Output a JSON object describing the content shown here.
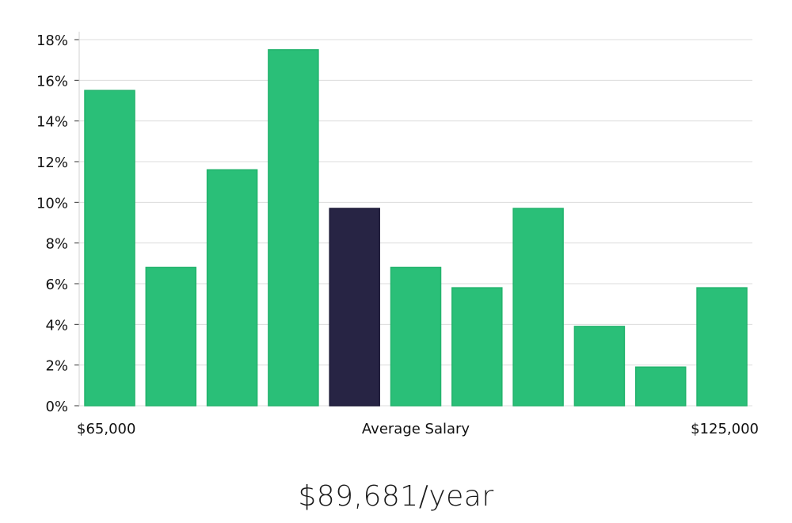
{
  "chart_data": {
    "type": "bar",
    "categories": [
      "$65,000",
      "",
      "",
      "",
      "Average Salary",
      "",
      "",
      "",
      "",
      "",
      "$125,000"
    ],
    "values": [
      15.5,
      6.8,
      11.6,
      17.5,
      9.7,
      6.8,
      5.8,
      9.7,
      3.9,
      1.9,
      5.8
    ],
    "highlight_index": 4,
    "ylim": [
      0,
      18
    ],
    "y_ticks": [
      0,
      2,
      4,
      6,
      8,
      10,
      12,
      14,
      16,
      18
    ],
    "y_tick_format": "percent",
    "xlabel": "",
    "ylabel": "",
    "grid": true,
    "colors": {
      "bar": "#2abf78",
      "highlight": "#272444",
      "grid": "#dcdcdc"
    }
  },
  "x_axis_labels": {
    "min": "$65,000",
    "center": "Average Salary",
    "max": "$125,000"
  },
  "salary": "$89,681/year"
}
